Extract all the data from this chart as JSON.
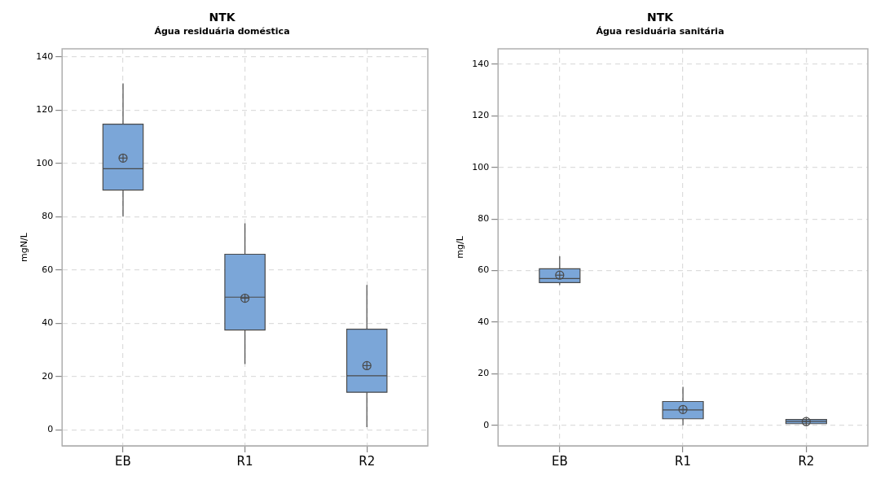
{
  "chart_data": [
    {
      "type": "box",
      "title": "NTK",
      "subtitle": "Água residuária doméstica",
      "ylabel": "mgN/L",
      "categories": [
        "EB",
        "R1",
        "R2"
      ],
      "color": "#7ba6d8",
      "ylim": [
        -6,
        143
      ],
      "yticks": [
        0,
        20,
        40,
        60,
        80,
        100,
        120,
        140
      ],
      "grid": true,
      "boxes": [
        {
          "low": 80,
          "q1": 90,
          "median": 98,
          "q3": 114.7,
          "high": 130,
          "mean": 102
        },
        {
          "low": 24.7,
          "q1": 37.5,
          "median": 49.8,
          "q3": 65.9,
          "high": 77.5,
          "mean": 49.4
        },
        {
          "low": 1,
          "q1": 14.1,
          "median": 20.3,
          "q3": 37.8,
          "high": 54.4,
          "mean": 24.1
        }
      ]
    },
    {
      "type": "box",
      "title": "NTK",
      "subtitle": "Água residuária sanitária",
      "ylabel": "mg/L",
      "categories": [
        "EB",
        "R1",
        "R2"
      ],
      "color": "#7ba6d8",
      "ylim": [
        -8,
        146
      ],
      "yticks": [
        0,
        20,
        40,
        60,
        80,
        100,
        120,
        140
      ],
      "grid": true,
      "boxes": [
        {
          "low": 54.4,
          "q1": 55.3,
          "median": 56.9,
          "q3": 60.7,
          "high": 65.5,
          "mean": 58.2
        },
        {
          "low": 0,
          "q1": 2.5,
          "median": 5.9,
          "q3": 9.2,
          "high": 14.9,
          "mean": 6.1
        },
        {
          "low": 0.5,
          "q1": 0.6,
          "median": 1.4,
          "q3": 2.2,
          "high": 2.2,
          "mean": 1.4
        }
      ]
    }
  ]
}
